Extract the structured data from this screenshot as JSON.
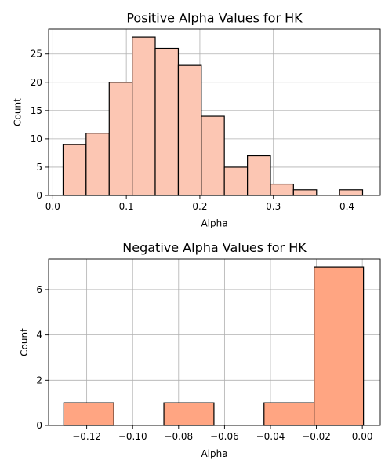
{
  "chart_data": [
    {
      "type": "bar",
      "title": "Positive Alpha Values for HK",
      "xlabel": "Alpha",
      "ylabel": "Count",
      "xlim": [
        -0.0057,
        0.4453
      ],
      "ylim": [
        0,
        29.4
      ],
      "grid": true,
      "bar_color": "#fcc6b3",
      "edge_color": "#000000",
      "bins": [
        {
          "start": 0.014,
          "end": 0.0453,
          "value": 9
        },
        {
          "start": 0.0453,
          "end": 0.0767,
          "value": 11
        },
        {
          "start": 0.0767,
          "end": 0.108,
          "value": 20
        },
        {
          "start": 0.108,
          "end": 0.1393,
          "value": 28
        },
        {
          "start": 0.1393,
          "end": 0.1707,
          "value": 26
        },
        {
          "start": 0.1707,
          "end": 0.202,
          "value": 23
        },
        {
          "start": 0.202,
          "end": 0.2333,
          "value": 14
        },
        {
          "start": 0.2333,
          "end": 0.2647,
          "value": 5
        },
        {
          "start": 0.2647,
          "end": 0.296,
          "value": 7
        },
        {
          "start": 0.296,
          "end": 0.3273,
          "value": 2
        },
        {
          "start": 0.3273,
          "end": 0.3587,
          "value": 1
        },
        {
          "start": 0.3587,
          "end": 0.39,
          "value": 0
        },
        {
          "start": 0.39,
          "end": 0.4213,
          "value": 1
        }
      ],
      "x_ticks": [
        0.0,
        0.1,
        0.2,
        0.3,
        0.4
      ],
      "x_tick_labels": [
        "0.0",
        "0.1",
        "0.2",
        "0.3",
        "0.4"
      ],
      "y_ticks": [
        0,
        5,
        10,
        15,
        20,
        25
      ],
      "y_tick_labels": [
        "0",
        "5",
        "10",
        "15",
        "20",
        "25"
      ]
    },
    {
      "type": "bar",
      "title": "Negative Alpha Values for HK",
      "xlabel": "Alpha",
      "ylabel": "Count",
      "xlim": [
        -0.1366,
        0.0078
      ],
      "ylim": [
        0,
        7.35
      ],
      "grid": true,
      "bar_color": "#ffa582",
      "edge_color": "#000000",
      "bins": [
        {
          "start": -0.13,
          "end": -0.1082,
          "value": 1
        },
        {
          "start": -0.1082,
          "end": -0.0864,
          "value": 0
        },
        {
          "start": -0.0864,
          "end": -0.0646,
          "value": 1
        },
        {
          "start": -0.0646,
          "end": -0.0428,
          "value": 0
        },
        {
          "start": -0.0428,
          "end": -0.021,
          "value": 1
        },
        {
          "start": -0.021,
          "end": 0.0005,
          "value": 7
        }
      ],
      "x_ticks": [
        -0.12,
        -0.1,
        -0.08,
        -0.06,
        -0.04,
        -0.02,
        0.0
      ],
      "x_tick_labels": [
        "−0.12",
        "−0.10",
        "−0.08",
        "−0.06",
        "−0.04",
        "−0.02",
        "0.00"
      ],
      "y_ticks": [
        0,
        2,
        4,
        6
      ],
      "y_tick_labels": [
        "0",
        "2",
        "4",
        "6"
      ]
    }
  ]
}
